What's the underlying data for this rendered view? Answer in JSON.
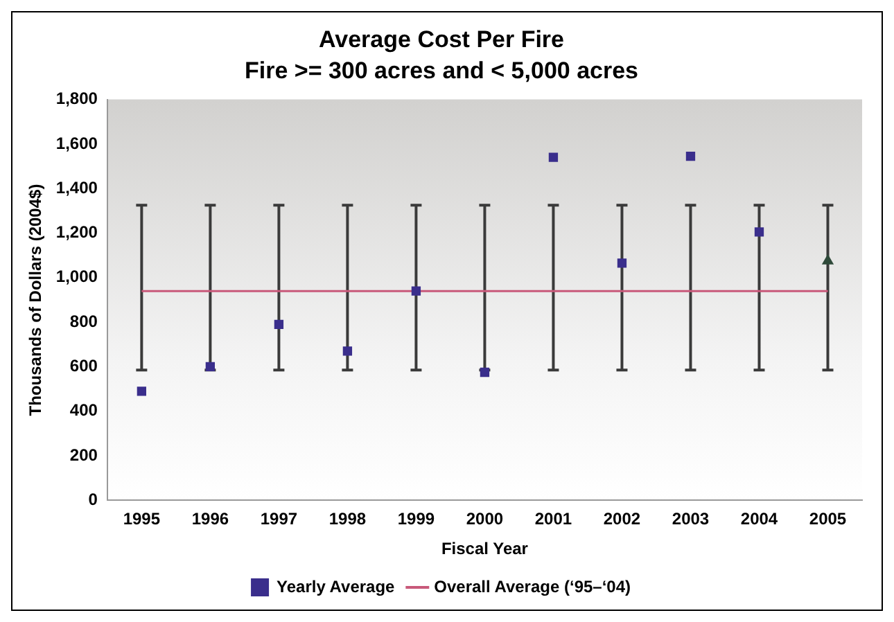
{
  "chart_data": {
    "type": "scatter",
    "title": "Average Cost Per Fire",
    "subtitle": "Fire >= 300 acres and < 5,000 acres",
    "xlabel": "Fiscal Year",
    "ylabel": "Thousands of Dollars (2004$)",
    "categories": [
      "1995",
      "1996",
      "1997",
      "1998",
      "1999",
      "2000",
      "2001",
      "2002",
      "2003",
      "2004",
      "2005"
    ],
    "series": [
      {
        "name": "Yearly Average",
        "color": "#3a2e8c",
        "marker": "square",
        "values": [
          490,
          600,
          790,
          670,
          940,
          575,
          1540,
          1065,
          1545,
          1205,
          null
        ],
        "errors": [
          [
            585,
            1325
          ],
          [
            585,
            1325
          ],
          [
            585,
            1325
          ],
          [
            585,
            1325
          ],
          [
            585,
            1325
          ],
          [
            585,
            1325
          ],
          [
            585,
            1325
          ],
          [
            585,
            1325
          ],
          [
            585,
            1325
          ],
          [
            585,
            1325
          ],
          null
        ]
      },
      {
        "color": "#2f4a3a",
        "marker": "triangle",
        "values": [
          null,
          null,
          null,
          null,
          null,
          null,
          null,
          null,
          null,
          null,
          1075
        ],
        "errors": [
          null,
          null,
          null,
          null,
          null,
          null,
          null,
          null,
          null,
          null,
          [
            585,
            1325
          ]
        ]
      }
    ],
    "ref_lines": [
      {
        "axis": "y",
        "value": 940,
        "label": "Overall Average (‘95–‘04)",
        "color": "#c8597a"
      }
    ],
    "ylim": [
      0,
      1800
    ],
    "yticks": [
      0,
      200,
      400,
      600,
      800,
      {
        "value": 1000,
        "label": "1,000"
      },
      {
        "value": 1200,
        "label": "1,200"
      },
      {
        "value": 1400,
        "label": "1,400"
      },
      {
        "value": 1600,
        "label": "1,600"
      },
      {
        "value": 1800,
        "label": "1,800"
      }
    ],
    "grid": false,
    "legend": "bottom"
  }
}
